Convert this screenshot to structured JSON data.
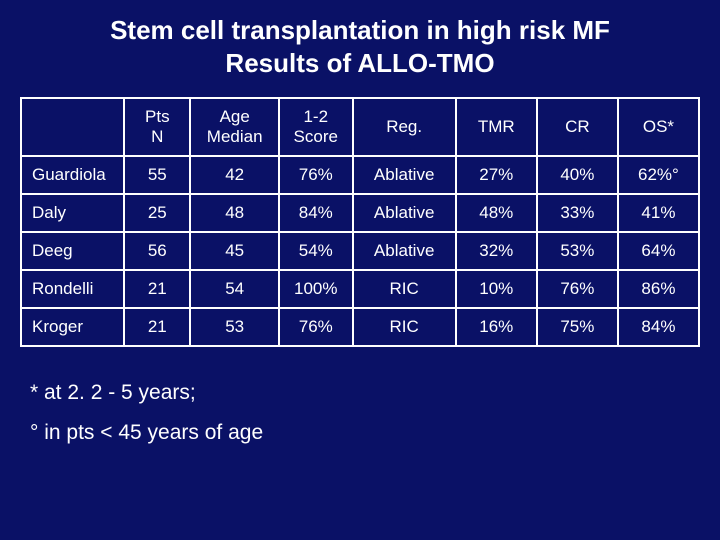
{
  "colors": {
    "background": "#0a1166",
    "text": "#ffffff",
    "border": "#ffffff"
  },
  "title": {
    "line1": "Stem cell transplantation in high risk MF",
    "line2": "Results of ALLO-TMO",
    "fontsize": 26,
    "weight": "bold"
  },
  "table": {
    "type": "table",
    "columns": [
      {
        "label_line1": "",
        "label_line2": "",
        "width_pct": 14,
        "align": "left"
      },
      {
        "label_line1": "Pts",
        "label_line2": "N",
        "width_pct": 9,
        "align": "center"
      },
      {
        "label_line1": "Age",
        "label_line2": "Median",
        "width_pct": 12,
        "align": "center"
      },
      {
        "label_line1": "1-2",
        "label_line2": "Score",
        "width_pct": 10,
        "align": "center"
      },
      {
        "label_line1": "Reg.",
        "label_line2": "",
        "width_pct": 14,
        "align": "center"
      },
      {
        "label_line1": "TMR",
        "label_line2": "",
        "width_pct": 11,
        "align": "center"
      },
      {
        "label_line1": "CR",
        "label_line2": "",
        "width_pct": 11,
        "align": "center"
      },
      {
        "label_line1": "OS*",
        "label_line2": "",
        "width_pct": 11,
        "align": "center"
      }
    ],
    "rows": [
      {
        "study": "Guardiola",
        "pts": "55",
        "age": "42",
        "score": "76%",
        "reg": "Ablative",
        "tmr": "27%",
        "cr": "40%",
        "os": "62%°"
      },
      {
        "study": "Daly",
        "pts": "25",
        "age": "48",
        "score": "84%",
        "reg": "Ablative",
        "tmr": "48%",
        "cr": "33%",
        "os": "41%"
      },
      {
        "study": "Deeg",
        "pts": "56",
        "age": "45",
        "score": "54%",
        "reg": "Ablative",
        "tmr": "32%",
        "cr": "53%",
        "os": "64%"
      },
      {
        "study": "Rondelli",
        "pts": "21",
        "age": "54",
        "score": "100%",
        "reg": "RIC",
        "tmr": "10%",
        "cr": "76%",
        "os": "86%"
      },
      {
        "study": "Kroger",
        "pts": "21",
        "age": "53",
        "score": "76%",
        "reg": "RIC",
        "tmr": "16%",
        "cr": "75%",
        "os": "84%"
      }
    ],
    "cell_fontsize": 17,
    "border_width": 2
  },
  "footnotes": {
    "note1": "* at 2. 2 - 5 years;",
    "note2": "° in pts < 45 years of age",
    "fontsize": 21
  }
}
